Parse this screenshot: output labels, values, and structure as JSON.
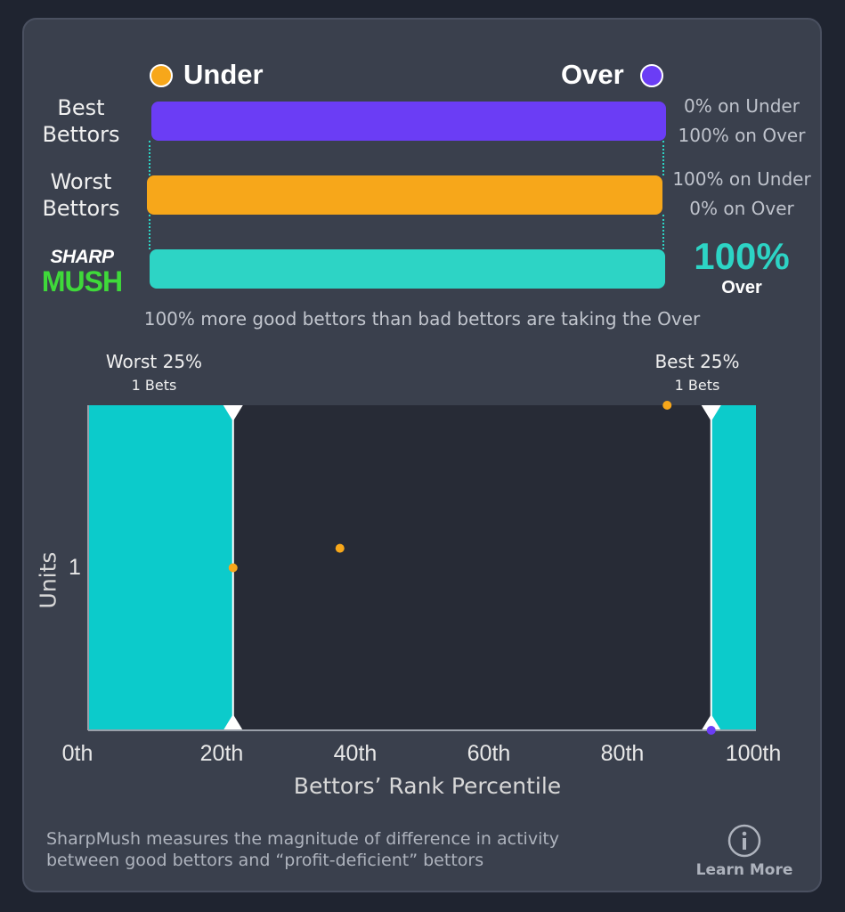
{
  "legend": {
    "under_label": "Under",
    "over_label": "Over",
    "under_color": "#f7a71a",
    "over_color": "#6b3df5"
  },
  "rows": {
    "best_label_line1": "Best",
    "best_label_line2": "Bettors",
    "best_under_pct": 0,
    "best_text_line1": "0% on Under",
    "best_text_line2": "100% on Over",
    "worst_label_line1": "Worst",
    "worst_label_line2": "Bettors",
    "worst_under_pct": 100,
    "worst_text_line1": "100% on Under",
    "worst_text_line2": "0% on Over",
    "sharpmush_pct": 100,
    "sharpmush_big": "100%",
    "sharpmush_side": "Over",
    "sharpmush_color": "#2dd4c5"
  },
  "logo": {
    "line1": "SHARP",
    "line2": "MUSH"
  },
  "summary": "100% more good bettors than bad bettors are taking the Over",
  "plot": {
    "worst_label": "Worst 25%",
    "worst_bets": "1 Bets",
    "best_label": "Best 25%",
    "best_bets": "1 Bets",
    "y_label": "Units",
    "y_tick": "1",
    "x_title": "Bettors’ Rank Percentile",
    "x_ticks": [
      "0th",
      "20th",
      "40th",
      "60th",
      "80th",
      "100th"
    ]
  },
  "chart_data": {
    "type": "scatter",
    "xlabel": "Bettors’ Rank Percentile",
    "ylabel": "Units",
    "xlim": [
      0,
      100
    ],
    "ylim": [
      0,
      2
    ],
    "x_ticks": [
      0,
      20,
      40,
      60,
      80,
      100
    ],
    "y_ticks": [
      1
    ],
    "regions": [
      {
        "name": "Worst 25%",
        "x_range": [
          0,
          21.7
        ]
      },
      {
        "name": "Best 25%",
        "x_range": [
          93.3,
          100
        ]
      }
    ],
    "series": [
      {
        "color": "#f7a71a",
        "points": [
          [
            21.7,
            1.0
          ],
          [
            37.7,
            1.12
          ],
          [
            86.7,
            2.0
          ]
        ]
      },
      {
        "color": "#6b3df5",
        "points": [
          [
            93.3,
            0.0
          ]
        ]
      }
    ],
    "grid": false
  },
  "footer": {
    "text_line1": "SharpMush measures the magnitude of difference in activity",
    "text_line2": "between good bettors and “profit-deficient” bettors",
    "learn_more": "Learn More"
  }
}
